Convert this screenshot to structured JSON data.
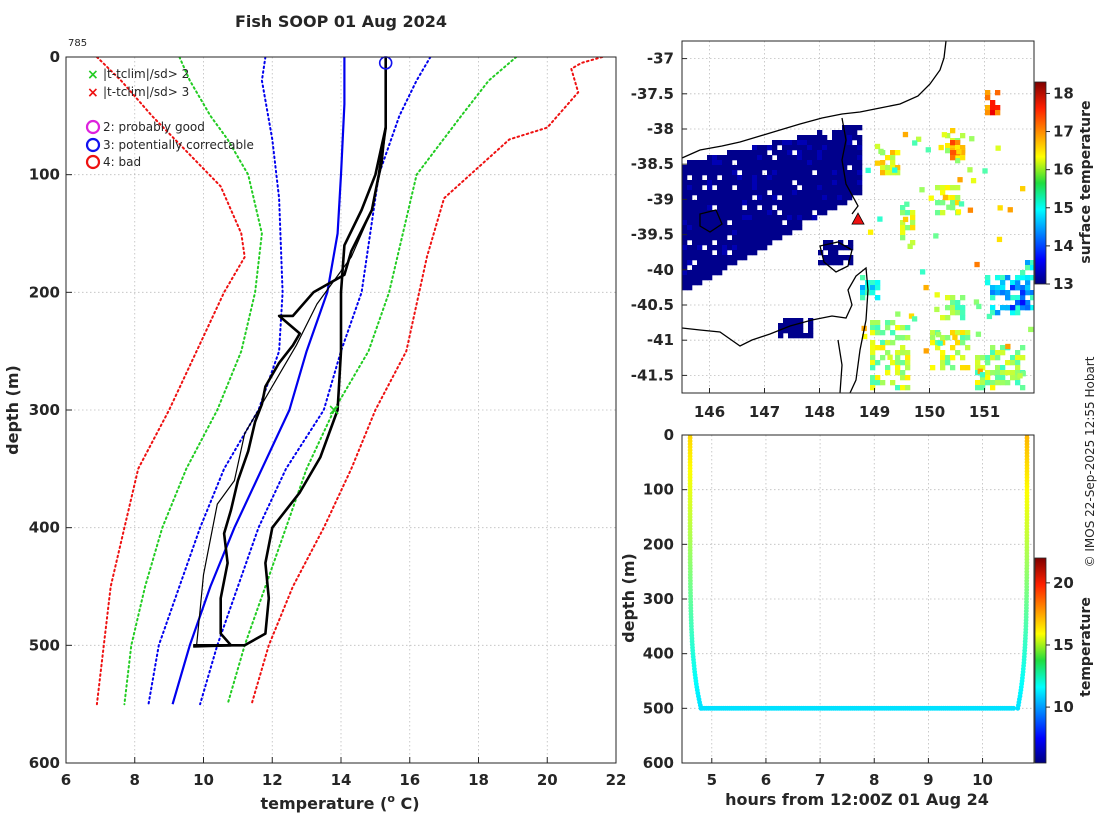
{
  "figure": {
    "title": "Fish SOOP 01 Aug 2024",
    "drop_id": "785",
    "credit": "© IMOS 22-Sep-2025 12:55 Hobart"
  },
  "chart_data": [
    {
      "type": "line",
      "id": "profile",
      "title": "Fish SOOP 01 Aug 2024",
      "xlabel": "temperature (o C)",
      "xlabel_main": "temperature (",
      "xlabel_sup": "o",
      "xlabel_end": " C)",
      "ylabel": "depth (m)",
      "xlim": [
        6,
        22
      ],
      "ylim": [
        0,
        600
      ],
      "y_reversed": true,
      "xticks": [
        6,
        8,
        10,
        12,
        14,
        16,
        18,
        20,
        22
      ],
      "yticks": [
        0,
        100,
        200,
        300,
        400,
        500,
        600
      ],
      "grid": true,
      "legend": [
        {
          "marker": "x",
          "color": "#22cc22",
          "label": "|t-tclim|/sd> 2"
        },
        {
          "marker": "x",
          "color": "#ee1111",
          "label": "|t-tclim|/sd> 3"
        },
        {
          "marker": "o",
          "color": "#dd22dd",
          "label": "2: probably good"
        },
        {
          "marker": "o",
          "color": "#1111ee",
          "label": "3: potentially correctable"
        },
        {
          "marker": "o",
          "color": "#ee1111",
          "label": "4: bad"
        }
      ],
      "series": [
        {
          "name": "climatology mean",
          "color": "#0000ee",
          "dash": "solid",
          "width": 2.2,
          "points": [
            [
              14.1,
              0
            ],
            [
              14.1,
              40
            ],
            [
              14.0,
              100
            ],
            [
              13.9,
              150
            ],
            [
              13.6,
              200
            ],
            [
              13.0,
              250
            ],
            [
              12.5,
              300
            ],
            [
              11.7,
              350
            ],
            [
              10.9,
              400
            ],
            [
              10.2,
              450
            ],
            [
              9.6,
              500
            ],
            [
              9.1,
              550
            ]
          ]
        },
        {
          "name": "mean - 1sd",
          "color": "#0000ee",
          "dash": "dot",
          "width": 2,
          "points": [
            [
              11.8,
              0
            ],
            [
              11.7,
              20
            ],
            [
              12.0,
              70
            ],
            [
              12.2,
              120
            ],
            [
              12.3,
              200
            ],
            [
              12.2,
              250
            ],
            [
              11.6,
              300
            ],
            [
              10.6,
              350
            ],
            [
              9.9,
              400
            ],
            [
              9.3,
              450
            ],
            [
              8.7,
              500
            ],
            [
              8.4,
              550
            ]
          ]
        },
        {
          "name": "mean + 1sd",
          "color": "#0000ee",
          "dash": "dot",
          "width": 2,
          "points": [
            [
              16.6,
              0
            ],
            [
              16.2,
              20
            ],
            [
              15.7,
              50
            ],
            [
              15.1,
              100
            ],
            [
              14.6,
              200
            ],
            [
              14.0,
              250
            ],
            [
              13.5,
              300
            ],
            [
              12.4,
              350
            ],
            [
              11.6,
              400
            ],
            [
              11.0,
              450
            ],
            [
              10.4,
              500
            ],
            [
              9.9,
              550
            ]
          ]
        },
        {
          "name": "mean - 2sd",
          "color": "#22cc22",
          "dash": "dot",
          "width": 2,
          "points": [
            [
              9.3,
              0
            ],
            [
              9.6,
              20
            ],
            [
              10.2,
              50
            ],
            [
              10.7,
              70
            ],
            [
              11.3,
              100
            ],
            [
              11.7,
              150
            ],
            [
              11.5,
              200
            ],
            [
              11.1,
              250
            ],
            [
              10.4,
              300
            ],
            [
              9.5,
              350
            ],
            [
              8.8,
              400
            ],
            [
              8.3,
              450
            ],
            [
              7.9,
              500
            ],
            [
              7.7,
              550
            ]
          ]
        },
        {
          "name": "mean + 2sd",
          "color": "#22cc22",
          "dash": "dot",
          "width": 2,
          "points": [
            [
              19.1,
              0
            ],
            [
              18.3,
              20
            ],
            [
              17.5,
              50
            ],
            [
              16.2,
              100
            ],
            [
              15.4,
              200
            ],
            [
              14.8,
              250
            ],
            [
              13.8,
              300
            ],
            [
              13.0,
              350
            ],
            [
              12.4,
              400
            ],
            [
              11.8,
              450
            ],
            [
              11.2,
              500
            ],
            [
              10.7,
              550
            ]
          ]
        },
        {
          "name": "mean - 3sd",
          "color": "#ee1111",
          "dash": "dot",
          "width": 2,
          "points": [
            [
              6.9,
              0
            ],
            [
              7.6,
              20
            ],
            [
              8.5,
              50
            ],
            [
              9.5,
              80
            ],
            [
              10.5,
              110
            ],
            [
              11.1,
              150
            ],
            [
              11.2,
              170
            ],
            [
              10.6,
              200
            ],
            [
              9.8,
              250
            ],
            [
              9.0,
              300
            ],
            [
              8.1,
              350
            ],
            [
              7.7,
              400
            ],
            [
              7.3,
              450
            ],
            [
              7.1,
              500
            ],
            [
              6.9,
              550
            ]
          ]
        },
        {
          "name": "mean + 3sd",
          "color": "#ee1111",
          "dash": "dot",
          "width": 2,
          "points": [
            [
              21.6,
              0
            ],
            [
              21.0,
              5
            ],
            [
              20.7,
              10
            ],
            [
              20.9,
              30
            ],
            [
              20.0,
              60
            ],
            [
              18.9,
              70
            ],
            [
              17.0,
              120
            ],
            [
              16.5,
              170
            ],
            [
              15.9,
              250
            ],
            [
              15.0,
              300
            ],
            [
              14.3,
              350
            ],
            [
              13.5,
              400
            ],
            [
              12.6,
              450
            ],
            [
              11.9,
              500
            ],
            [
              11.4,
              550
            ]
          ]
        },
        {
          "name": "observed temperature",
          "color": "#000000",
          "dash": "solid",
          "width": 2.6,
          "points": [
            [
              15.3,
              0
            ],
            [
              15.3,
              60
            ],
            [
              15.2,
              80
            ],
            [
              15.1,
              100
            ],
            [
              14.9,
              130
            ],
            [
              14.3,
              165
            ],
            [
              14.1,
              185
            ],
            [
              13.2,
              200
            ],
            [
              12.6,
              220
            ],
            [
              12.2,
              220
            ],
            [
              12.8,
              235
            ],
            [
              12.6,
              245
            ],
            [
              12.2,
              260
            ],
            [
              11.8,
              280
            ],
            [
              11.7,
              295
            ],
            [
              11.5,
              310
            ],
            [
              11.3,
              335
            ],
            [
              11.0,
              360
            ],
            [
              10.8,
              385
            ],
            [
              10.6,
              405
            ],
            [
              10.7,
              430
            ],
            [
              10.5,
              460
            ],
            [
              10.5,
              490
            ],
            [
              10.8,
              500
            ],
            [
              9.7,
              501
            ]
          ]
        },
        {
          "name": "observed temperature (upper branch)",
          "color": "#000000",
          "dash": "solid",
          "width": 2.6,
          "points": [
            [
              15.3,
              60
            ],
            [
              15.0,
              100
            ],
            [
              14.6,
              130
            ],
            [
              14.1,
              160
            ],
            [
              14.0,
              200
            ],
            [
              14.0,
              250
            ],
            [
              13.9,
              300
            ],
            [
              13.4,
              340
            ],
            [
              12.8,
              370
            ],
            [
              12.0,
              400
            ],
            [
              11.8,
              430
            ],
            [
              11.9,
              460
            ],
            [
              11.8,
              490
            ],
            [
              11.2,
              500
            ],
            [
              9.7,
              500
            ]
          ]
        },
        {
          "name": "uncertainty envelope",
          "color": "#000000",
          "dash": "solid",
          "width": 1.2,
          "points": [
            [
              9.8,
              500
            ],
            [
              9.9,
              470
            ],
            [
              10.0,
              440
            ],
            [
              10.2,
              410
            ],
            [
              10.4,
              380
            ],
            [
              10.9,
              360
            ],
            [
              11.2,
              320
            ],
            [
              11.6,
              300
            ],
            [
              12.2,
              270
            ],
            [
              12.7,
              245
            ],
            [
              13.3,
              210
            ],
            [
              14.3,
              170
            ],
            [
              14.9,
              130
            ],
            [
              15.2,
              90
            ],
            [
              15.3,
              60
            ]
          ]
        }
      ],
      "markers": [
        {
          "type": "circle",
          "color": "#1111ee",
          "x": 15.3,
          "y": 5
        },
        {
          "type": "x",
          "color": "#22cc22",
          "x": 13.8,
          "y": 300
        }
      ]
    },
    {
      "type": "heatmap",
      "id": "map",
      "title": "",
      "xlabel": "",
      "ylabel": "",
      "xlim": [
        145.5,
        151.9
      ],
      "ylim": [
        -41.75,
        -36.75
      ],
      "xticks": [
        146,
        147,
        148,
        149,
        150,
        151
      ],
      "yticks": [
        -37,
        -37.5,
        -38,
        -38.5,
        -39,
        -39.5,
        -40,
        -40.5,
        -41,
        -41.5
      ],
      "colorbar_label": "surface temperature",
      "colorbar_range": [
        13,
        18.3
      ],
      "colorbar_ticks": [
        13,
        14,
        15,
        16,
        17,
        18
      ],
      "drop_location": [
        148.7,
        -39.28
      ]
    },
    {
      "type": "scatter",
      "id": "depth_time",
      "title": "",
      "xlabel": "hours from 12:00Z 01 Aug 24",
      "ylabel": "depth (m)",
      "xlim": [
        4.45,
        10.95
      ],
      "ylim": [
        0,
        600
      ],
      "y_reversed": true,
      "xticks": [
        5,
        6,
        7,
        8,
        9,
        10
      ],
      "yticks": [
        0,
        100,
        200,
        300,
        400,
        500,
        600
      ],
      "colorbar_label": "temperature",
      "colorbar_range": [
        5.5,
        22
      ],
      "colorbar_ticks": [
        10,
        15,
        20
      ],
      "descent": {
        "t_start": 4.6,
        "t_bottom": 4.8,
        "temp_top": 16.5,
        "temp_bottom": 11.2
      },
      "bottom": {
        "t_start": 4.8,
        "t_end": 10.6,
        "depth": 500,
        "temp": 11.2
      },
      "ascent": {
        "t_bottom": 10.65,
        "t_end": 10.82,
        "temp_top": 17.0
      }
    }
  ]
}
